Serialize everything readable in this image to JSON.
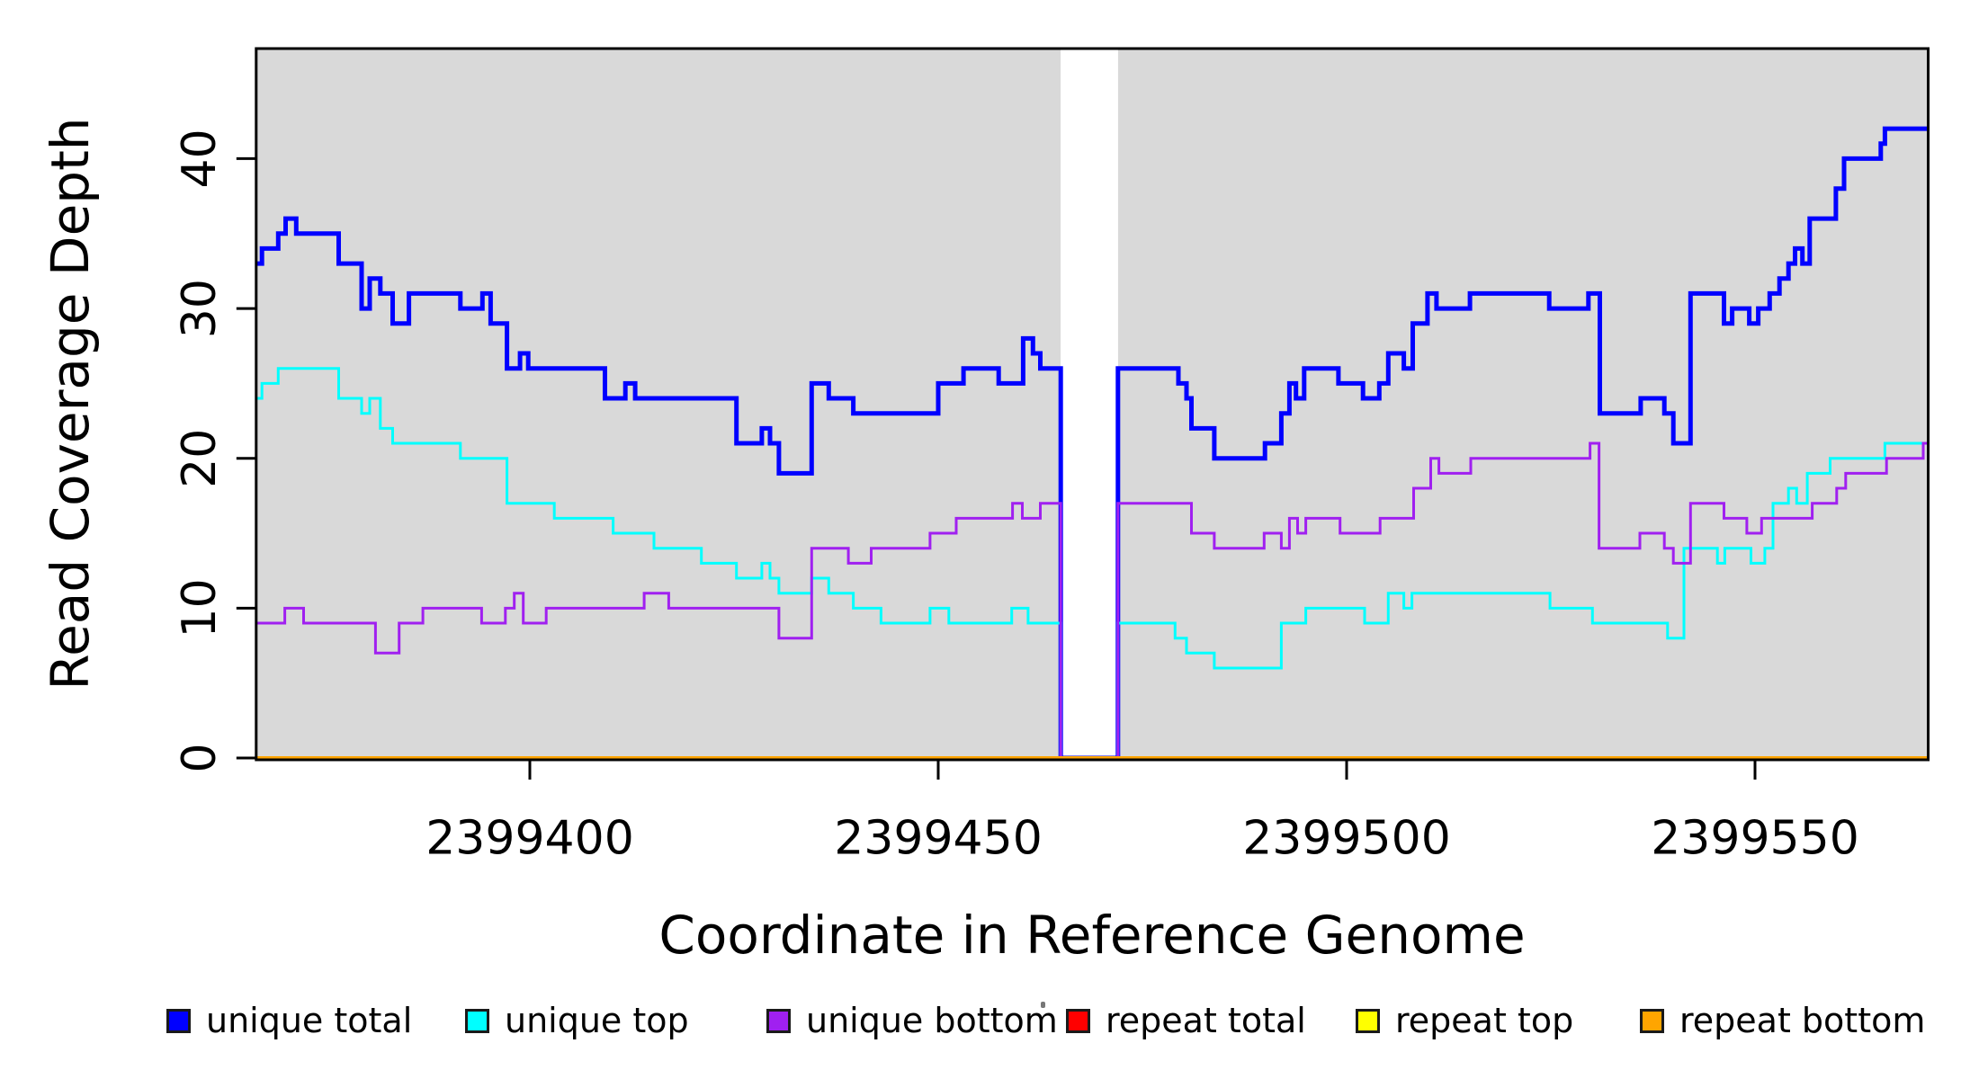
{
  "chart_data": {
    "type": "line",
    "line_style": "step-post",
    "title": "",
    "xlabel": "Coordinate in Reference Genome",
    "ylabel": "Read Coverage Depth",
    "x_ticks": [
      2399400,
      2399450,
      2399500,
      2399550
    ],
    "x_tick_labels": [
      "2399400",
      "2399450",
      "2399500",
      "2399550"
    ],
    "y_ticks": [
      0,
      10,
      20,
      30,
      40
    ],
    "y_tick_labels": [
      "0",
      "10",
      "20",
      "30",
      "40"
    ],
    "xlim": [
      2399366.5,
      2399571.2
    ],
    "ylim": [
      0,
      47.3
    ],
    "grid": false,
    "panel_bg": "#d9d9d9",
    "gap_region": {
      "x_start": 2399465,
      "x_end": 2399472,
      "fill": "#ffffff",
      "note": "no-data band; unique series drop to 0 at its edges"
    },
    "series": [
      {
        "name": "unique total",
        "color": "#0000ff",
        "line_width": 5,
        "x_end": 2399571.2,
        "steps": [
          [
            2399366.5,
            33
          ],
          [
            2399367.2,
            34
          ],
          [
            2399369.2,
            35
          ],
          [
            2399370.1,
            36
          ],
          [
            2399371.4,
            35
          ],
          [
            2399376.6,
            33
          ],
          [
            2399379.4,
            30
          ],
          [
            2399380.4,
            32
          ],
          [
            2399381.7,
            31
          ],
          [
            2399383.2,
            29
          ],
          [
            2399385.2,
            31
          ],
          [
            2399391.5,
            30
          ],
          [
            2399394.2,
            31
          ],
          [
            2399395.2,
            29
          ],
          [
            2399397.2,
            26
          ],
          [
            2399398.8,
            27
          ],
          [
            2399399.8,
            26
          ],
          [
            2399409.2,
            24
          ],
          [
            2399411.7,
            25
          ],
          [
            2399412.9,
            24
          ],
          [
            2399425.3,
            21
          ],
          [
            2399428.4,
            22
          ],
          [
            2399429.4,
            21
          ],
          [
            2399430.5,
            19
          ],
          [
            2399434.5,
            25
          ],
          [
            2399436.6,
            24
          ],
          [
            2399439.6,
            23
          ],
          [
            2399450,
            25
          ],
          [
            2399453.1,
            26
          ],
          [
            2399457.4,
            25
          ],
          [
            2399460.4,
            28
          ],
          [
            2399461.6,
            27
          ],
          [
            2399462.5,
            26
          ],
          [
            2399465,
            0
          ],
          [
            2399472,
            26
          ],
          [
            2399479.4,
            25
          ],
          [
            2399480.4,
            24
          ],
          [
            2399481,
            22
          ],
          [
            2399483.8,
            20
          ],
          [
            2399490,
            21
          ],
          [
            2399492,
            23
          ],
          [
            2399493,
            25
          ],
          [
            2399493.8,
            24
          ],
          [
            2399494.8,
            26
          ],
          [
            2399499,
            25
          ],
          [
            2399502,
            24
          ],
          [
            2399504,
            25
          ],
          [
            2399505.1,
            27
          ],
          [
            2399507,
            26
          ],
          [
            2399508.1,
            29
          ],
          [
            2399509.9,
            31
          ],
          [
            2399511,
            30
          ],
          [
            2399515.1,
            31
          ],
          [
            2399524.8,
            30
          ],
          [
            2399529.6,
            31
          ],
          [
            2399531,
            23
          ],
          [
            2399536,
            24
          ],
          [
            2399538.9,
            23
          ],
          [
            2399540,
            21
          ],
          [
            2399542.1,
            31
          ],
          [
            2399546.2,
            29
          ],
          [
            2399547.2,
            30
          ],
          [
            2399549.3,
            29
          ],
          [
            2399550.4,
            30
          ],
          [
            2399551.8,
            31
          ],
          [
            2399553,
            32
          ],
          [
            2399554.1,
            33
          ],
          [
            2399554.9,
            34
          ],
          [
            2399555.8,
            33
          ],
          [
            2399556.7,
            36
          ],
          [
            2399559.9,
            38
          ],
          [
            2399560.9,
            40
          ],
          [
            2399565.4,
            41
          ],
          [
            2399565.9,
            42
          ]
        ]
      },
      {
        "name": "unique top",
        "color": "#00ffff",
        "line_width": 3,
        "x_end": 2399571.2,
        "steps": [
          [
            2399366.5,
            24
          ],
          [
            2399367.2,
            25
          ],
          [
            2399369.2,
            26
          ],
          [
            2399376.6,
            24
          ],
          [
            2399379.4,
            23
          ],
          [
            2399380.4,
            24
          ],
          [
            2399381.7,
            22
          ],
          [
            2399383.2,
            21
          ],
          [
            2399391.5,
            20
          ],
          [
            2399397.2,
            17
          ],
          [
            2399403,
            16
          ],
          [
            2399410.2,
            15
          ],
          [
            2399415.2,
            14
          ],
          [
            2399421,
            13
          ],
          [
            2399425.3,
            12
          ],
          [
            2399428.4,
            13
          ],
          [
            2399429.4,
            12
          ],
          [
            2399430.5,
            11
          ],
          [
            2399434.5,
            12
          ],
          [
            2399436.6,
            11
          ],
          [
            2399439.6,
            10
          ],
          [
            2399443,
            9
          ],
          [
            2399449,
            10
          ],
          [
            2399451.3,
            9
          ],
          [
            2399459,
            10
          ],
          [
            2399461,
            9
          ],
          [
            2399465,
            0
          ],
          [
            2399472,
            9
          ],
          [
            2399479,
            8
          ],
          [
            2399480.4,
            7
          ],
          [
            2399483.8,
            6
          ],
          [
            2399492,
            9
          ],
          [
            2399495,
            10
          ],
          [
            2399502.2,
            9
          ],
          [
            2399505.1,
            11
          ],
          [
            2399507,
            10
          ],
          [
            2399508,
            11
          ],
          [
            2399524.9,
            10
          ],
          [
            2399530.1,
            9
          ],
          [
            2399539.3,
            8
          ],
          [
            2399541.3,
            14
          ],
          [
            2399545.4,
            13
          ],
          [
            2399546.3,
            14
          ],
          [
            2399549.5,
            13
          ],
          [
            2399551.2,
            14
          ],
          [
            2399552.2,
            17
          ],
          [
            2399554.1,
            18
          ],
          [
            2399555.1,
            17
          ],
          [
            2399556.4,
            19
          ],
          [
            2399559.2,
            20
          ],
          [
            2399565.9,
            21
          ]
        ]
      },
      {
        "name": "unique bottom",
        "color": "#a020f0",
        "line_width": 3,
        "x_end": 2399571.2,
        "steps": [
          [
            2399366.5,
            9
          ],
          [
            2399370,
            10
          ],
          [
            2399372.3,
            9
          ],
          [
            2399381.1,
            7
          ],
          [
            2399384,
            9
          ],
          [
            2399386.9,
            10
          ],
          [
            2399394.1,
            9
          ],
          [
            2399397,
            10
          ],
          [
            2399398.1,
            11
          ],
          [
            2399399.2,
            9
          ],
          [
            2399402,
            10
          ],
          [
            2399414,
            11
          ],
          [
            2399417,
            10
          ],
          [
            2399430.5,
            8
          ],
          [
            2399434.5,
            14
          ],
          [
            2399439,
            13
          ],
          [
            2399441.8,
            14
          ],
          [
            2399449,
            15
          ],
          [
            2399452.2,
            16
          ],
          [
            2399459.1,
            17
          ],
          [
            2399460.3,
            16
          ],
          [
            2399462.5,
            17
          ],
          [
            2399465,
            0
          ],
          [
            2399472,
            17
          ],
          [
            2399481,
            15
          ],
          [
            2399483.8,
            14
          ],
          [
            2399489.9,
            15
          ],
          [
            2399492,
            14
          ],
          [
            2399493,
            16
          ],
          [
            2399494,
            15
          ],
          [
            2399495,
            16
          ],
          [
            2399499.2,
            15
          ],
          [
            2399504.1,
            16
          ],
          [
            2399508.2,
            18
          ],
          [
            2399510.3,
            20
          ],
          [
            2399511.3,
            19
          ],
          [
            2399515.2,
            20
          ],
          [
            2399529.8,
            21
          ],
          [
            2399530.9,
            14
          ],
          [
            2399535.9,
            15
          ],
          [
            2399538.9,
            14
          ],
          [
            2399540,
            13
          ],
          [
            2399542.1,
            17
          ],
          [
            2399546.2,
            16
          ],
          [
            2399549,
            15
          ],
          [
            2399550.8,
            16
          ],
          [
            2399557,
            17
          ],
          [
            2399560,
            18
          ],
          [
            2399561.1,
            19
          ],
          [
            2399566.1,
            20
          ],
          [
            2399570.6,
            21
          ]
        ]
      },
      {
        "name": "repeat total",
        "color": "#ff0000",
        "line_width": 3,
        "x_end": 2399571.2,
        "steps": [
          [
            2399366.5,
            0
          ]
        ]
      },
      {
        "name": "repeat top",
        "color": "#ffff00",
        "line_width": 3,
        "x_end": 2399571.2,
        "steps": [
          [
            2399366.5,
            0
          ]
        ]
      },
      {
        "name": "repeat bottom",
        "color": "#ffa500",
        "line_width": 4,
        "x_end": 2399571.2,
        "steps": [
          [
            2399366.5,
            0
          ]
        ]
      }
    ],
    "legend": {
      "position": "bottom",
      "entries": [
        {
          "label": "unique total",
          "color": "#0000ff"
        },
        {
          "label": "unique top",
          "color": "#00ffff"
        },
        {
          "label": "unique bottom",
          "color": "#a020f0"
        },
        {
          "label": "repeat total",
          "color": "#ff0000"
        },
        {
          "label": "repeat top",
          "color": "#ffff00"
        },
        {
          "label": "repeat bottom",
          "color": "#ffa500"
        }
      ]
    }
  }
}
